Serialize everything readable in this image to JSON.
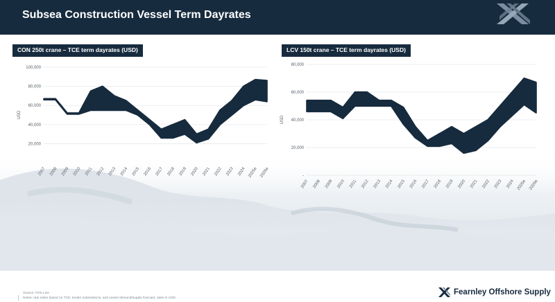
{
  "header": {
    "title": "Subsea Construction Vessel Term Dayrates"
  },
  "panels": [
    {
      "label": "CON  250t crane – TCE term dayrates (USD)"
    },
    {
      "label": "LCV  150t crane – TCE term dayrates (USD)"
    }
  ],
  "footer": {
    "source": "Source: FOS Live",
    "notes": "Notes: rate index based on TCE, tender submissions, and vessel demand/supply forecast, rates in USD",
    "brand": "Fearnley Offshore Supply"
  },
  "colors": {
    "header_bg": "#172b3e",
    "band_fill": "#172b3e"
  },
  "icons": {
    "header_logo": "fearnley-x-logo-icon",
    "footer_logo": "fearnley-logo-icon"
  },
  "chart_data": [
    {
      "type": "area",
      "title": "CON  250t crane – TCE term dayrates (USD)",
      "ylabel": "USD",
      "xlabel": "",
      "categories": [
        "2007",
        "2008",
        "2009",
        "2010",
        "2011",
        "2012",
        "2013",
        "2014",
        "2015",
        "2016",
        "2017",
        "2018",
        "2019",
        "2020",
        "2021",
        "2022",
        "2023",
        "2024",
        "2025e",
        "2026e"
      ],
      "series": [
        {
          "values": [
            67000,
            67000,
            52000,
            52000,
            75000,
            80000,
            70000,
            65000,
            55000,
            45000,
            35000,
            40000,
            45000,
            30000,
            35000,
            55000,
            65000,
            80000,
            87000,
            86000
          ]
        },
        {
          "values": [
            66000,
            66000,
            51000,
            51000,
            55000,
            55000,
            55000,
            55000,
            50000,
            40000,
            26000,
            26000,
            30000,
            21000,
            25000,
            40000,
            50000,
            60000,
            66000,
            64000
          ]
        }
      ],
      "ylim": [
        0,
        100000
      ],
      "yticks": [
        20000,
        40000,
        60000,
        80000,
        100000
      ],
      "yticklabels": [
        "20,000",
        "40,000",
        "60,000",
        "80,000",
        "100,000"
      ],
      "grid": true,
      "legend": "none"
    },
    {
      "type": "area",
      "title": "LCV  150t crane – TCE term dayrates (USD)",
      "ylabel": "USD",
      "xlabel": "",
      "categories": [
        "2007",
        "2008",
        "2009",
        "2010",
        "2011",
        "2012",
        "2013",
        "2014",
        "2015",
        "2016",
        "2017",
        "2018",
        "2019",
        "2020",
        "2021",
        "2022",
        "2023",
        "2024",
        "2025e",
        "2026e"
      ],
      "series": [
        {
          "values": [
            54000,
            54000,
            54000,
            49000,
            60000,
            60000,
            54000,
            54000,
            49000,
            35000,
            25000,
            30000,
            35000,
            30000,
            35000,
            40000,
            50000,
            60000,
            70000,
            67000
          ]
        },
        {
          "values": [
            46000,
            46000,
            46000,
            41000,
            50000,
            50000,
            50000,
            50000,
            37000,
            27000,
            21000,
            21000,
            23000,
            16000,
            18000,
            25000,
            35000,
            43000,
            51000,
            45000
          ]
        }
      ],
      "ylim": [
        0,
        80000
      ],
      "yticks": [
        0,
        20000,
        40000,
        60000,
        80000
      ],
      "yticklabels": [
        "-",
        "20,000",
        "40,000",
        "60,000",
        "80,000"
      ],
      "grid": true,
      "legend": "none"
    }
  ]
}
